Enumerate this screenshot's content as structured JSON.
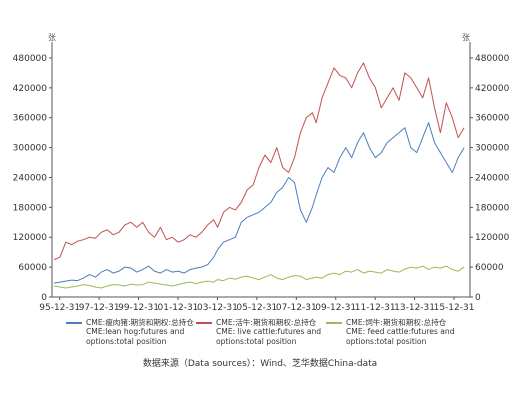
{
  "chart_data": {
    "type": "line",
    "unit_left": "张",
    "unit_right": "张",
    "x_tick_labels": [
      "95-12-31",
      "97-12-31",
      "99-12-31",
      "01-12-31",
      "03-12-31",
      "05-12-31",
      "07-12-31",
      "09-12-31",
      "11-12-31",
      "13-12-31",
      "15-12-31"
    ],
    "x_ticks": [
      1995.99,
      1997.99,
      1999.99,
      2001.99,
      2003.99,
      2005.99,
      2007.99,
      2009.99,
      2011.99,
      2013.99,
      2015.99
    ],
    "xlim": [
      1995.6,
      2016.8
    ],
    "ylim": [
      0,
      500000
    ],
    "y_ticks": [
      0,
      60000,
      120000,
      180000,
      240000,
      300000,
      360000,
      420000,
      480000
    ],
    "y_tick_labels": [
      "0",
      "60000",
      "120000",
      "180000",
      "240000",
      "300000",
      "360000",
      "420000",
      "480000"
    ],
    "grid": false,
    "legend_placement": "bottom",
    "series": [
      {
        "name": "CME:瘦肉猪:期货和期权:总持仓\nCME:lean hog:futures and options:total position",
        "color": "#4a7ebb",
        "x": [
          1995.7,
          1996.0,
          1996.3,
          1996.6,
          1996.9,
          1997.2,
          1997.5,
          1997.8,
          1998.1,
          1998.4,
          1998.7,
          1999.0,
          1999.3,
          1999.6,
          1999.9,
          2000.2,
          2000.5,
          2000.8,
          2001.1,
          2001.4,
          2001.7,
          2002.0,
          2002.3,
          2002.6,
          2002.9,
          2003.2,
          2003.5,
          2003.8,
          2004.0,
          2004.3,
          2004.6,
          2004.9,
          2005.2,
          2005.5,
          2005.8,
          2006.1,
          2006.4,
          2006.7,
          2007.0,
          2007.3,
          2007.6,
          2007.9,
          2008.2,
          2008.5,
          2008.8,
          2009.0,
          2009.3,
          2009.6,
          2009.9,
          2010.2,
          2010.5,
          2010.8,
          2011.1,
          2011.4,
          2011.7,
          2012.0,
          2012.3,
          2012.6,
          2012.9,
          2013.2,
          2013.5,
          2013.8,
          2014.1,
          2014.4,
          2014.7,
          2015.0,
          2015.3,
          2015.6,
          2015.9,
          2016.2,
          2016.5
        ],
        "y": [
          28000,
          30000,
          32000,
          34000,
          33000,
          38000,
          45000,
          40000,
          50000,
          55000,
          48000,
          52000,
          60000,
          58000,
          50000,
          55000,
          62000,
          52000,
          48000,
          55000,
          50000,
          52000,
          48000,
          55000,
          58000,
          60000,
          65000,
          80000,
          95000,
          110000,
          115000,
          120000,
          150000,
          160000,
          165000,
          170000,
          180000,
          190000,
          210000,
          220000,
          240000,
          230000,
          175000,
          150000,
          180000,
          205000,
          240000,
          260000,
          250000,
          280000,
          300000,
          280000,
          310000,
          330000,
          300000,
          280000,
          290000,
          310000,
          320000,
          330000,
          340000,
          300000,
          290000,
          320000,
          350000,
          310000,
          290000,
          270000,
          250000,
          280000,
          300000
        ]
      },
      {
        "name": "CME:活牛:期货和期权:总持仓\nCME:live cattle:futures and options:total position",
        "color": "#c0504d",
        "x": [
          1995.7,
          1996.0,
          1996.3,
          1996.6,
          1996.9,
          1997.2,
          1997.5,
          1997.8,
          1998.1,
          1998.4,
          1998.7,
          1999.0,
          1999.3,
          1999.6,
          1999.9,
          2000.2,
          2000.5,
          2000.8,
          2001.1,
          2001.4,
          2001.7,
          2002.0,
          2002.3,
          2002.6,
          2002.9,
          2003.2,
          2003.5,
          2003.8,
          2004.0,
          2004.3,
          2004.6,
          2004.9,
          2005.2,
          2005.5,
          2005.8,
          2006.1,
          2006.4,
          2006.7,
          2007.0,
          2007.3,
          2007.6,
          2007.9,
          2008.2,
          2008.5,
          2008.8,
          2009.0,
          2009.3,
          2009.6,
          2009.9,
          2010.2,
          2010.5,
          2010.8,
          2011.1,
          2011.4,
          2011.7,
          2012.0,
          2012.3,
          2012.6,
          2012.9,
          2013.2,
          2013.5,
          2013.8,
          2014.1,
          2014.4,
          2014.7,
          2015.0,
          2015.3,
          2015.6,
          2015.9,
          2016.2,
          2016.5
        ],
        "y": [
          75000,
          80000,
          110000,
          105000,
          112000,
          115000,
          120000,
          118000,
          130000,
          135000,
          125000,
          130000,
          145000,
          150000,
          140000,
          150000,
          130000,
          120000,
          140000,
          115000,
          120000,
          110000,
          115000,
          125000,
          120000,
          130000,
          145000,
          155000,
          140000,
          170000,
          180000,
          175000,
          190000,
          215000,
          225000,
          260000,
          285000,
          270000,
          300000,
          260000,
          250000,
          280000,
          330000,
          360000,
          370000,
          350000,
          400000,
          430000,
          460000,
          445000,
          440000,
          420000,
          450000,
          470000,
          440000,
          420000,
          380000,
          400000,
          420000,
          395000,
          450000,
          440000,
          420000,
          400000,
          440000,
          380000,
          330000,
          390000,
          360000,
          320000,
          340000
        ]
      },
      {
        "name": "CME:饲牛:期货和期权:总持仓\nCME: feed cattle:futures and options:total position",
        "color": "#9bbb59",
        "x": [
          1995.7,
          1996.0,
          1996.3,
          1996.6,
          1996.9,
          1997.2,
          1997.5,
          1997.8,
          1998.1,
          1998.4,
          1998.7,
          1999.0,
          1999.3,
          1999.6,
          1999.9,
          2000.2,
          2000.5,
          2000.8,
          2001.1,
          2001.4,
          2001.7,
          2002.0,
          2002.3,
          2002.6,
          2002.9,
          2003.2,
          2003.5,
          2003.8,
          2004.0,
          2004.3,
          2004.6,
          2004.9,
          2005.2,
          2005.5,
          2005.8,
          2006.1,
          2006.4,
          2006.7,
          2007.0,
          2007.3,
          2007.6,
          2007.9,
          2008.2,
          2008.5,
          2008.8,
          2009.0,
          2009.3,
          2009.6,
          2009.9,
          2010.2,
          2010.5,
          2010.8,
          2011.1,
          2011.4,
          2011.7,
          2012.0,
          2012.3,
          2012.6,
          2012.9,
          2013.2,
          2013.5,
          2013.8,
          2014.1,
          2014.4,
          2014.7,
          2015.0,
          2015.3,
          2015.6,
          2015.9,
          2016.2,
          2016.5
        ],
        "y": [
          22000,
          20000,
          18000,
          20000,
          22000,
          25000,
          23000,
          20000,
          18000,
          22000,
          25000,
          24000,
          22000,
          26000,
          24000,
          25000,
          30000,
          28000,
          26000,
          24000,
          22000,
          25000,
          28000,
          30000,
          27000,
          30000,
          32000,
          30000,
          35000,
          33000,
          38000,
          36000,
          40000,
          42000,
          38000,
          35000,
          40000,
          45000,
          38000,
          35000,
          40000,
          43000,
          42000,
          35000,
          38000,
          40000,
          38000,
          45000,
          48000,
          45000,
          52000,
          50000,
          55000,
          48000,
          52000,
          50000,
          48000,
          55000,
          52000,
          50000,
          56000,
          60000,
          58000,
          62000,
          55000,
          60000,
          58000,
          62000,
          55000,
          52000,
          60000
        ]
      }
    ]
  },
  "legend": [
    {
      "line1": "CME:瘦肉猪:期货和期权:总持仓",
      "line2": "CME:lean hog:futures and",
      "line3": "options:total position",
      "color": "#4a7ebb"
    },
    {
      "line1": "CME:活牛:期货和期权:总持仓",
      "line2": "CME: live cattle:futures and",
      "line3": "options:total position",
      "color": "#c0504d"
    },
    {
      "line1": "CME:饲牛:期货和期权:总持仓",
      "line2": "CME: feed cattle:futures and",
      "line3": "options:total position",
      "color": "#9bbb59"
    }
  ],
  "source": "数据来源（Data sources）：Wind、芝华数据China-data"
}
